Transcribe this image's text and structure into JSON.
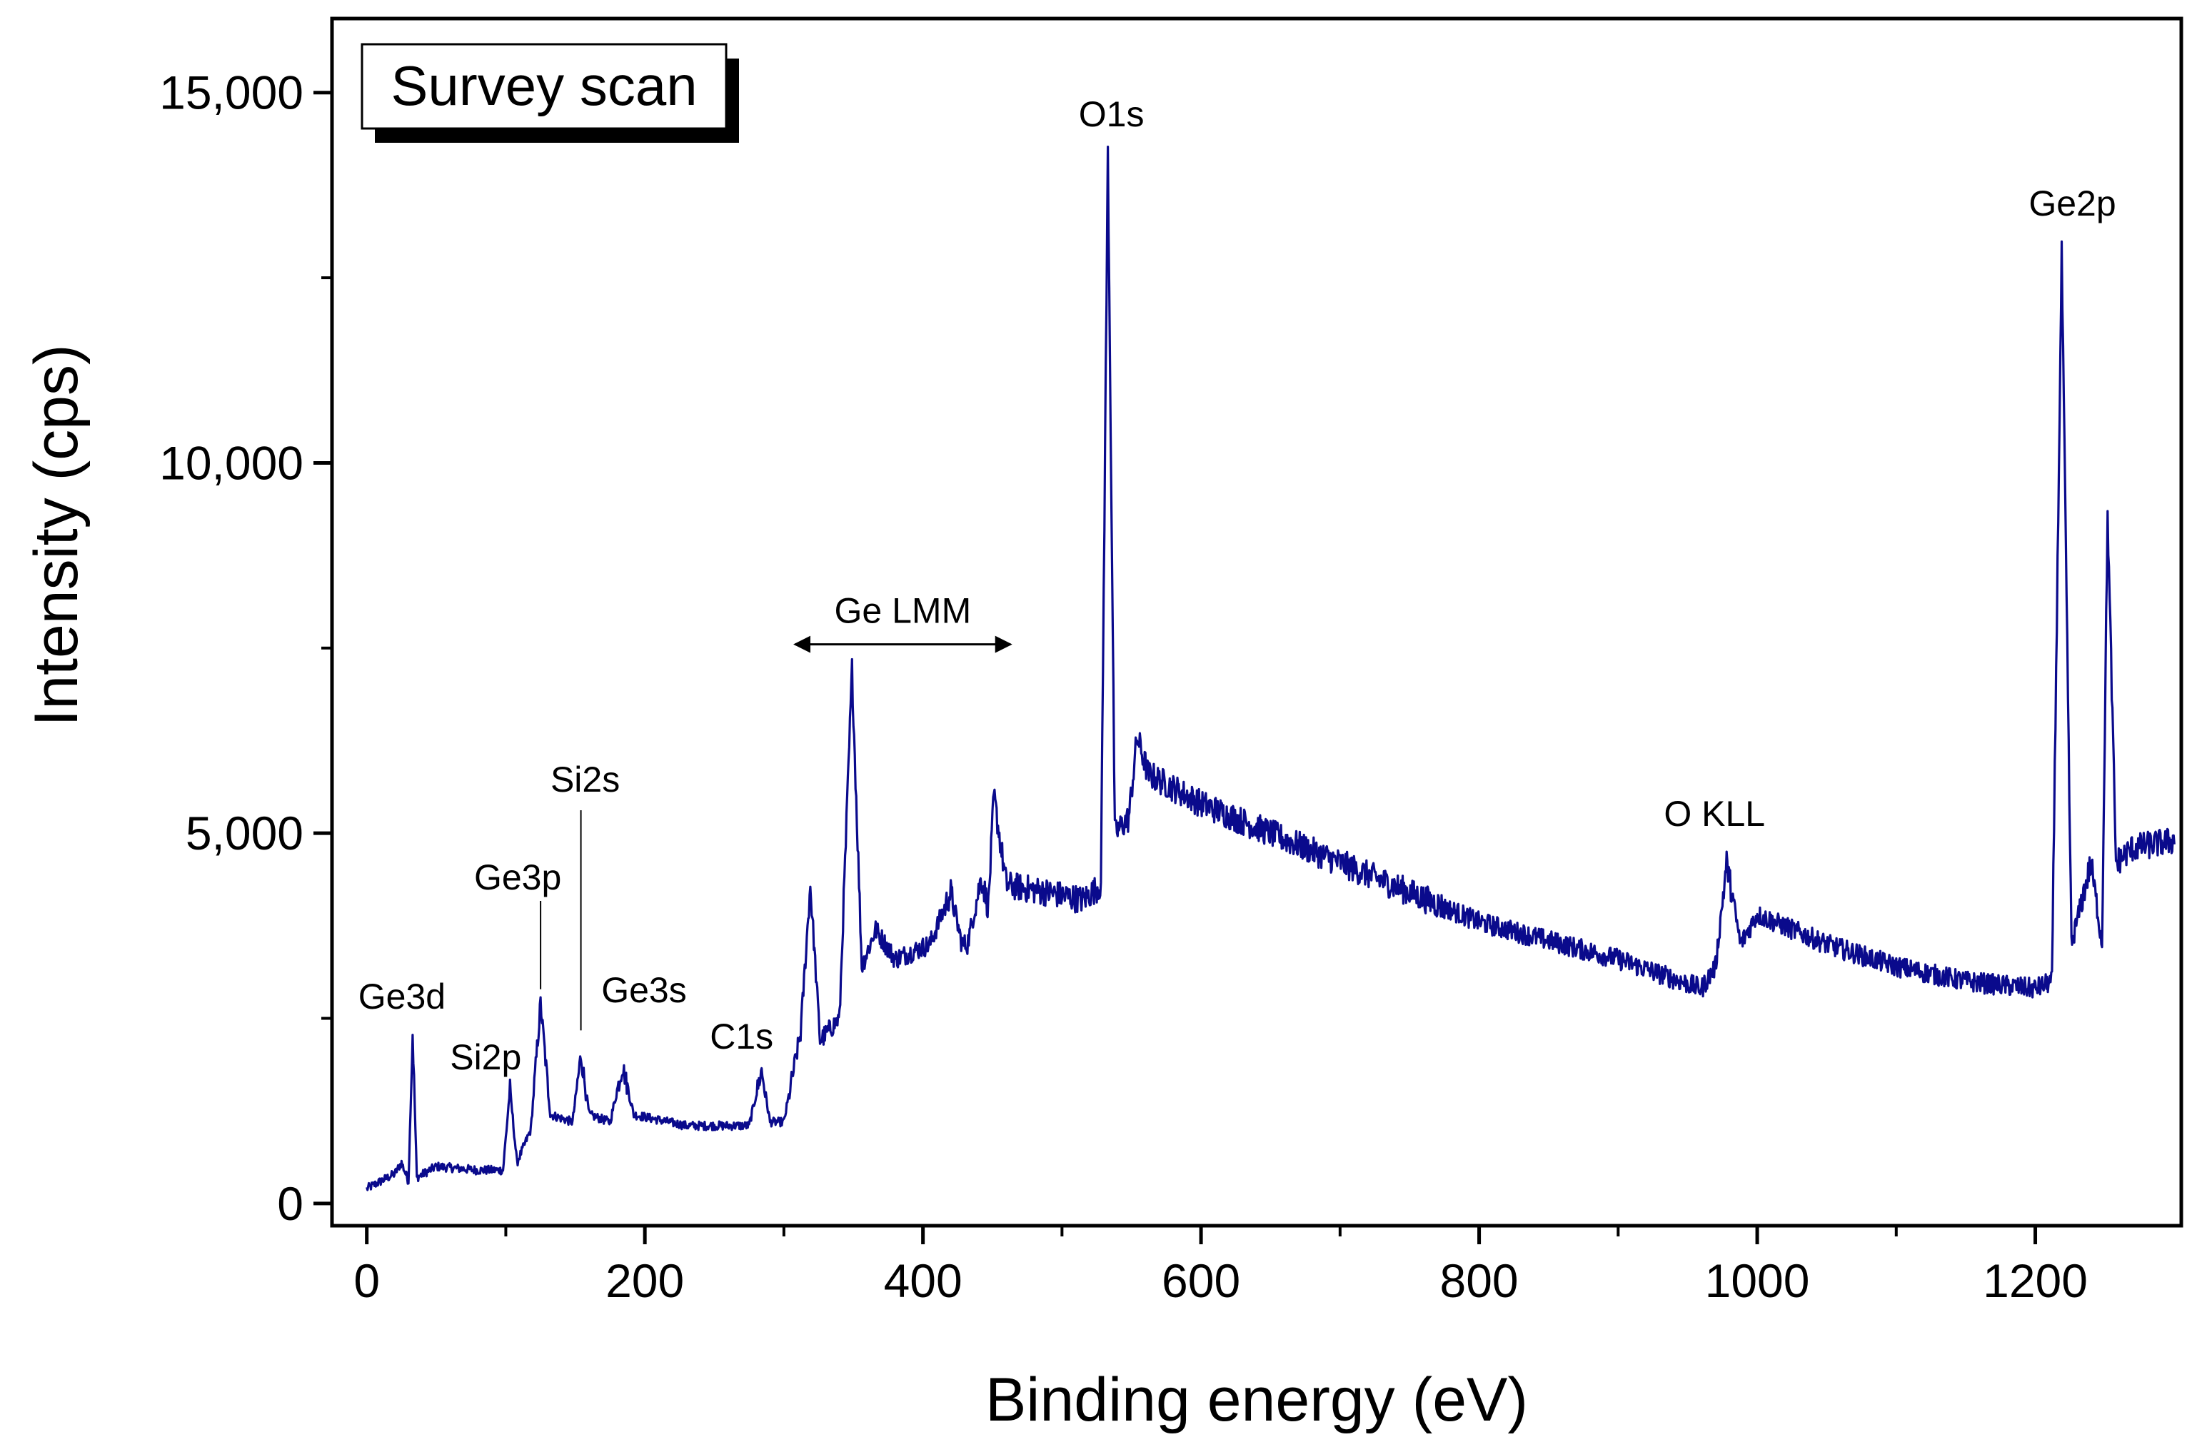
{
  "chart_data": {
    "type": "line",
    "title": "",
    "xlabel": "Binding energy (eV)",
    "ylabel": "Intensity (cps)",
    "xlim": [
      -25,
      1305
    ],
    "ylim": [
      -300,
      16000
    ],
    "x_ticks": [
      0,
      200,
      400,
      600,
      800,
      1000,
      1200
    ],
    "x_tick_labels": [
      "0",
      "200",
      "400",
      "600",
      "800",
      "1000",
      "1200"
    ],
    "y_ticks": [
      0,
      5000,
      10000,
      15000
    ],
    "y_tick_labels": [
      "0",
      "5,000",
      "10,000",
      "15,000"
    ],
    "grid": false,
    "legend": {
      "label": "Survey scan",
      "position": "top-left"
    },
    "series": [
      {
        "name": "Survey scan",
        "color": "#0a0a8c",
        "x": [
          0,
          20,
          25,
          30,
          33,
          36,
          50,
          80,
          98,
          103,
          108,
          118,
          125,
          132,
          148,
          154,
          160,
          175,
          184,
          192,
          230,
          275,
          284,
          290,
          300,
          312,
          319,
          326,
          340,
          349,
          356,
          366,
          380,
          405,
          420,
          428,
          432,
          442,
          447,
          451,
          460,
          490,
          515,
          528,
          533,
          538,
          548,
          554,
          562,
          600,
          700,
          800,
          900,
          960,
          970,
          978,
          988,
          1000,
          1050,
          1100,
          1150,
          1200,
          1212,
          1219,
          1226,
          1240,
          1248,
          1252,
          1258,
          1270,
          1300
        ],
        "y": [
          200,
          400,
          550,
          300,
          2300,
          350,
          500,
          450,
          450,
          1550,
          550,
          1000,
          2700,
          1200,
          1100,
          2000,
          1200,
          1100,
          1850,
          1200,
          1050,
          1050,
          1800,
          1100,
          1100,
          2300,
          4300,
          2200,
          2500,
          7200,
          3200,
          3700,
          3300,
          3500,
          4200,
          3500,
          3500,
          4400,
          4000,
          5500,
          4300,
          4200,
          4100,
          4300,
          14200,
          5000,
          5200,
          6300,
          5800,
          5400,
          4600,
          3800,
          3300,
          2900,
          3200,
          4600,
          3500,
          3900,
          3500,
          3200,
          3000,
          2900,
          3000,
          12800,
          3500,
          4600,
          3500,
          9300,
          4600,
          4800,
          4900
        ]
      }
    ],
    "annotations": [
      {
        "text": "Ge3d",
        "x": 33,
        "y": 2300
      },
      {
        "text": "Si2p",
        "x": 103,
        "y": 1550
      },
      {
        "text": "Ge3p",
        "x": 125,
        "y": 2700
      },
      {
        "text": "Si2s",
        "x": 154,
        "y": 2000
      },
      {
        "text": "Ge3s",
        "x": 184,
        "y": 1850
      },
      {
        "text": "C1s",
        "x": 284,
        "y": 1800
      },
      {
        "text": "Ge LMM",
        "x_start": 308,
        "x_end": 463,
        "y": 7550
      },
      {
        "text": "O1s",
        "x": 533,
        "y": 14200
      },
      {
        "text": "O KLL",
        "x": 978,
        "y": 4600
      },
      {
        "text": "Ge2p",
        "x": 1219,
        "y": 12800
      }
    ]
  }
}
